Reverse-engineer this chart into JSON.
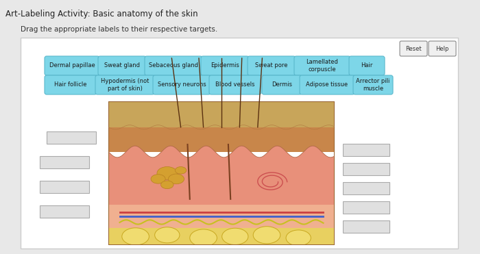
{
  "title": "Art-Labeling Activity: Basic anatomy of the skin",
  "subtitle": "Drag the appropriate labels to their respective targets.",
  "fig_bg": "#e8e8e8",
  "panel_bg": "#ffffff",
  "panel_border": "#cccccc",
  "label_bg": "#7dd6e8",
  "label_border": "#5ab8cc",
  "empty_box_bg": "#e0e0e0",
  "empty_box_border": "#aaaaaa",
  "reset_btn": "Reset",
  "help_btn": "Help",
  "row1_labels": [
    "Dermal papillae",
    "Sweat gland",
    "Sebaceous gland",
    "Epidermis",
    "Sweat pore",
    "Lamellated\ncorpuscle",
    "Hair"
  ],
  "row2_labels": [
    "Hair follicle",
    "Hypodermis (not\npart of skin)",
    "Sensory neurons",
    "Blood vessels",
    "Dermis",
    "Adipose tissue",
    "Arrector pili\nmuscle"
  ],
  "skin_top_color": "#c8a060",
  "skin_epidermis_color": "#d4a96a",
  "skin_dermis_color": "#e8a090",
  "skin_hypo_color": "#f0d060",
  "hair_color": "#5a3010",
  "blood_blue": "#4060cc",
  "blood_red": "#cc4040"
}
